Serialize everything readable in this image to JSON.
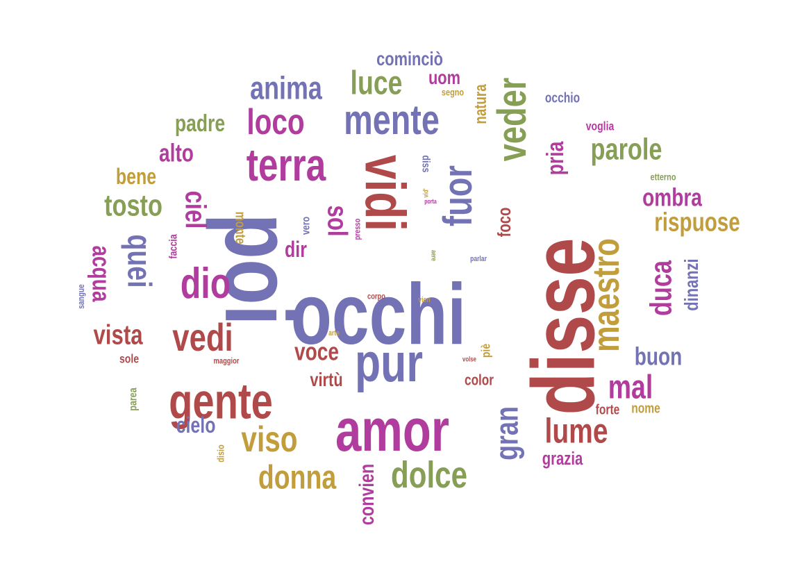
{
  "palette": {
    "blue": "#7272B4",
    "red": "#B04A4A",
    "magenta": "#B03C9E",
    "green": "#869E55",
    "gold": "#C29D3C"
  },
  "words": [
    {
      "text": "occhi",
      "color": "blue",
      "weight": 100
    },
    {
      "text": "disse",
      "color": "red",
      "weight": 96
    },
    {
      "text": "poi",
      "color": "blue",
      "weight": 95
    },
    {
      "text": "amor",
      "color": "magenta",
      "weight": 80
    },
    {
      "text": "vidi",
      "color": "red",
      "weight": 72
    },
    {
      "text": "pur",
      "color": "blue",
      "weight": 70
    },
    {
      "text": "gente",
      "color": "red",
      "weight": 62
    },
    {
      "text": "terra",
      "color": "magenta",
      "weight": 58
    },
    {
      "text": "fuor",
      "color": "blue",
      "weight": 57
    },
    {
      "text": "maestro",
      "color": "gold",
      "weight": 55
    },
    {
      "text": "mente",
      "color": "blue",
      "weight": 55
    },
    {
      "text": "veder",
      "color": "green",
      "weight": 52
    },
    {
      "text": "dio",
      "color": "magenta",
      "weight": 52
    },
    {
      "text": "vedi",
      "color": "red",
      "weight": 50
    },
    {
      "text": "dolce",
      "color": "green",
      "weight": 48
    },
    {
      "text": "donna",
      "color": "gold",
      "weight": 46
    },
    {
      "text": "viso",
      "color": "gold",
      "weight": 46
    },
    {
      "text": "lume",
      "color": "red",
      "weight": 45
    },
    {
      "text": "gran",
      "color": "blue",
      "weight": 44
    },
    {
      "text": "duca",
      "color": "magenta",
      "weight": 44
    },
    {
      "text": "loco",
      "color": "magenta",
      "weight": 42
    },
    {
      "text": "quei",
      "color": "blue",
      "weight": 42
    },
    {
      "text": "ciel",
      "color": "magenta",
      "weight": 42
    },
    {
      "text": "sol",
      "color": "magenta",
      "weight": 40
    },
    {
      "text": "mal",
      "color": "magenta",
      "weight": 40
    },
    {
      "text": "luce",
      "color": "green",
      "weight": 40
    },
    {
      "text": "anima",
      "color": "blue",
      "weight": 38
    },
    {
      "text": "parole",
      "color": "green",
      "weight": 36
    },
    {
      "text": "tosto",
      "color": "green",
      "weight": 34
    },
    {
      "text": "rispuose",
      "color": "gold",
      "weight": 30
    },
    {
      "text": "voce",
      "color": "red",
      "weight": 30
    },
    {
      "text": "vista",
      "color": "red",
      "weight": 30
    },
    {
      "text": "acqua",
      "color": "magenta",
      "weight": 30
    },
    {
      "text": "ombra",
      "color": "magenta",
      "weight": 28
    },
    {
      "text": "buon",
      "color": "blue",
      "weight": 28
    },
    {
      "text": "pria",
      "color": "magenta",
      "weight": 28
    },
    {
      "text": "alto",
      "color": "magenta",
      "weight": 28
    },
    {
      "text": "padre",
      "color": "green",
      "weight": 26
    },
    {
      "text": "cielo",
      "color": "blue",
      "weight": 26
    },
    {
      "text": "convien",
      "color": "magenta",
      "weight": 26
    },
    {
      "text": "dinanzi",
      "color": "blue",
      "weight": 24
    },
    {
      "text": "cominciò",
      "color": "blue",
      "weight": 24
    },
    {
      "text": "dir",
      "color": "magenta",
      "weight": 24
    },
    {
      "text": "virtù",
      "color": "red",
      "weight": 24
    },
    {
      "text": "bene",
      "color": "gold",
      "weight": 24
    },
    {
      "text": "uom",
      "color": "magenta",
      "weight": 22
    },
    {
      "text": "foco",
      "color": "red",
      "weight": 22
    },
    {
      "text": "natura",
      "color": "gold",
      "weight": 22
    },
    {
      "text": "grazia",
      "color": "magenta",
      "weight": 22
    },
    {
      "text": "color",
      "color": "red",
      "weight": 18
    },
    {
      "text": "forte",
      "color": "red",
      "weight": 18
    },
    {
      "text": "nome",
      "color": "gold",
      "weight": 18
    },
    {
      "text": "occhio",
      "color": "blue",
      "weight": 18
    },
    {
      "text": "voglia",
      "color": "magenta",
      "weight": 16
    },
    {
      "text": "piè",
      "color": "gold",
      "weight": 16
    },
    {
      "text": "sole",
      "color": "red",
      "weight": 16
    },
    {
      "text": "monte",
      "color": "gold",
      "weight": 16
    },
    {
      "text": "segno",
      "color": "gold",
      "weight": 14
    },
    {
      "text": "faccia",
      "color": "magenta",
      "weight": 14
    },
    {
      "text": "vero",
      "color": "blue",
      "weight": 14
    },
    {
      "text": "parea",
      "color": "green",
      "weight": 14
    },
    {
      "text": "disio",
      "color": "gold",
      "weight": 12
    },
    {
      "text": "etterno",
      "color": "green",
      "weight": 12
    },
    {
      "text": "sangue",
      "color": "blue",
      "weight": 12
    },
    {
      "text": "diss",
      "color": "blue",
      "weight": 12
    },
    {
      "text": "presso",
      "color": "magenta",
      "weight": 11
    },
    {
      "text": "maggior",
      "color": "red",
      "weight": 10
    },
    {
      "text": "parlar",
      "color": "blue",
      "weight": 10
    },
    {
      "text": "corpo",
      "color": "red",
      "weight": 10
    },
    {
      "text": "vien",
      "color": "gold",
      "weight": 10
    },
    {
      "text": "arte",
      "color": "gold",
      "weight": 10
    },
    {
      "text": "volse",
      "color": "red",
      "weight": 9
    },
    {
      "text": "aere",
      "color": "green",
      "weight": 9
    },
    {
      "text": "vid'",
      "color": "gold",
      "weight": 9
    },
    {
      "text": "porta",
      "color": "magenta",
      "weight": 9
    }
  ]
}
